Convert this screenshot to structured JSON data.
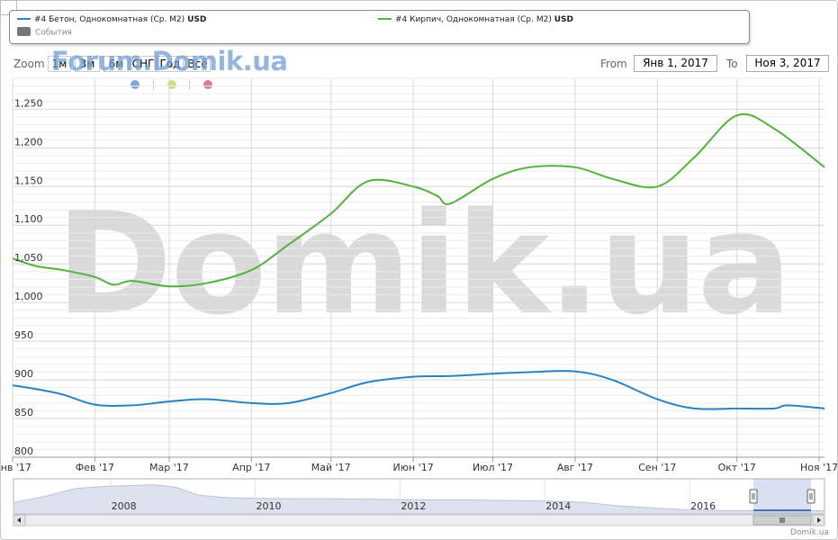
{
  "legend": {
    "series1_name": "#4 Бетон, Однокомнатная (Ср. М2)",
    "series1_unit": "USD",
    "series2_name": "#4 Кирпич, Однокомнатная (Ср. М2)",
    "series2_unit": "USD",
    "events_label": "События"
  },
  "toolbar": {
    "zoom_label": "Zoom",
    "zoom_buttons": [
      "1м",
      "3м",
      "6м",
      "СНГ",
      "Год",
      "Всё"
    ],
    "from_label": "From",
    "from_value": "Янв 1, 2017",
    "to_label": "To",
    "to_value": "Ноя 3, 2017"
  },
  "watermark_small": "Forum.Domik.ua",
  "watermark_big": "Domik.ua",
  "attribution": "Domik.ua",
  "colors": {
    "beton": "#2b82c2",
    "kirpich": "#52b33c",
    "dot_blue": "#7aa7d9",
    "dot_yellow": "#d6d97a",
    "dot_pink": "#d97a99",
    "grid": "#e2e2e2",
    "navigator_fill": "#dde3ee"
  },
  "chart_data": {
    "type": "line",
    "title": "",
    "xlabel": "",
    "ylabel": "",
    "x_ticks": [
      "Янв '17",
      "Фев '17",
      "Мар '17",
      "Апр '17",
      "Май '17",
      "Июн '17",
      "Июл '17",
      "Авг '17",
      "Сен '17",
      "Окт '17",
      "Ноя '17"
    ],
    "y_ticks": [
      "800",
      "850",
      "900",
      "950",
      "1,000",
      "1,050",
      "1,100",
      "1,150",
      "1,200",
      "1,250"
    ],
    "ylim": [
      800,
      1290
    ],
    "x_domain": [
      "2017-01-01",
      "2017-11-03"
    ],
    "grid": true,
    "series": [
      {
        "name": "#4 Бетон, Однокомнатная (Ср. М2)",
        "x": [
          "2017-01-01",
          "2017-01-10",
          "2017-01-20",
          "2017-02-01",
          "2017-02-15",
          "2017-03-01",
          "2017-03-15",
          "2017-04-01",
          "2017-04-15",
          "2017-05-01",
          "2017-05-15",
          "2017-06-01",
          "2017-06-15",
          "2017-07-01",
          "2017-07-15",
          "2017-08-01",
          "2017-08-15",
          "2017-09-01",
          "2017-09-15",
          "2017-10-01",
          "2017-10-15",
          "2017-10-20",
          "2017-11-03"
        ],
        "values": [
          893,
          888,
          881,
          868,
          867,
          872,
          875,
          870,
          870,
          883,
          897,
          904,
          905,
          908,
          910,
          911,
          900,
          875,
          863,
          863,
          863,
          867,
          863
        ]
      },
      {
        "name": "#4 Кирпич, Однокомнатная (Ср. М2)",
        "x": [
          "2017-01-01",
          "2017-01-10",
          "2017-01-20",
          "2017-02-01",
          "2017-02-08",
          "2017-02-15",
          "2017-03-01",
          "2017-03-15",
          "2017-04-01",
          "2017-04-15",
          "2017-05-01",
          "2017-05-15",
          "2017-06-01",
          "2017-06-10",
          "2017-06-15",
          "2017-07-01",
          "2017-07-15",
          "2017-08-01",
          "2017-08-15",
          "2017-09-01",
          "2017-09-15",
          "2017-10-01",
          "2017-10-15",
          "2017-11-03"
        ],
        "values": [
          1057,
          1047,
          1042,
          1033,
          1023,
          1028,
          1021,
          1025,
          1042,
          1075,
          1115,
          1157,
          1150,
          1138,
          1128,
          1160,
          1175,
          1175,
          1160,
          1150,
          1188,
          1242,
          1225,
          1175
        ]
      }
    ],
    "navigator_ticks": [
      "2008",
      "2010",
      "2012",
      "2014",
      "2016"
    ]
  }
}
